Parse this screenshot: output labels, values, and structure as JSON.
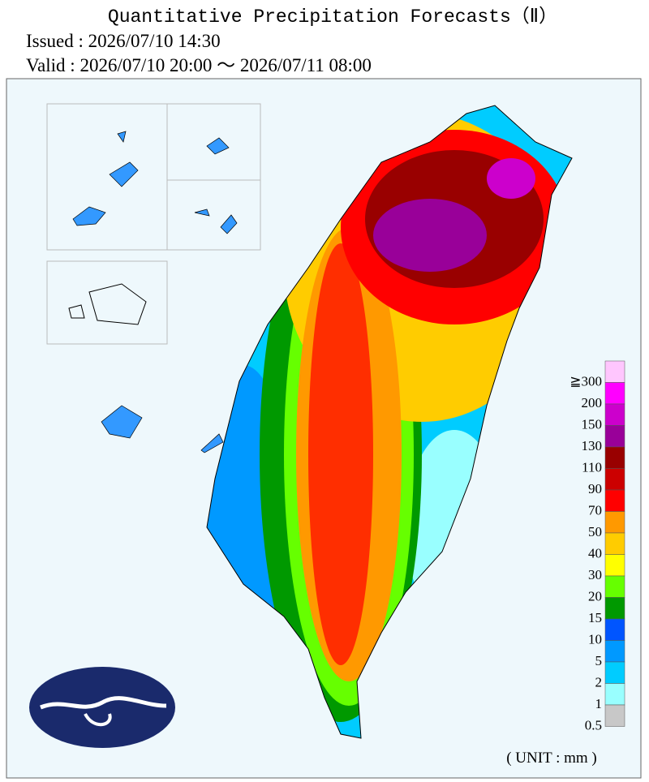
{
  "header": {
    "title": "Quantitative Precipitation Forecasts（Ⅱ）",
    "issued": "Issued : 2026/07/10 14:30",
    "valid": "Valid : 2026/07/10 20:00 ～ 2026/07/11 08:00"
  },
  "legend": {
    "items": [
      {
        "label": "≧300",
        "color": "#ffc6fe"
      },
      {
        "label": "200",
        "color": "#ff00ff"
      },
      {
        "label": "150",
        "color": "#cc00cc"
      },
      {
        "label": "130",
        "color": "#990099"
      },
      {
        "label": "110",
        "color": "#990000"
      },
      {
        "label": "90",
        "color": "#cc0000"
      },
      {
        "label": "70",
        "color": "#ff0000"
      },
      {
        "label": "50",
        "color": "#ff9900"
      },
      {
        "label": "40",
        "color": "#ffcc00"
      },
      {
        "label": "30",
        "color": "#ffff00"
      },
      {
        "label": "20",
        "color": "#66ff00"
      },
      {
        "label": "15",
        "color": "#009900"
      },
      {
        "label": "10",
        "color": "#0055ff"
      },
      {
        "label": "5",
        "color": "#0099ff"
      },
      {
        "label": "2",
        "color": "#00ccff"
      },
      {
        "label": "1",
        "color": "#99ffff"
      },
      {
        "label": "0.5",
        "color": "#c8c8c8"
      }
    ],
    "unit": "( UNIT : mm )"
  }
}
